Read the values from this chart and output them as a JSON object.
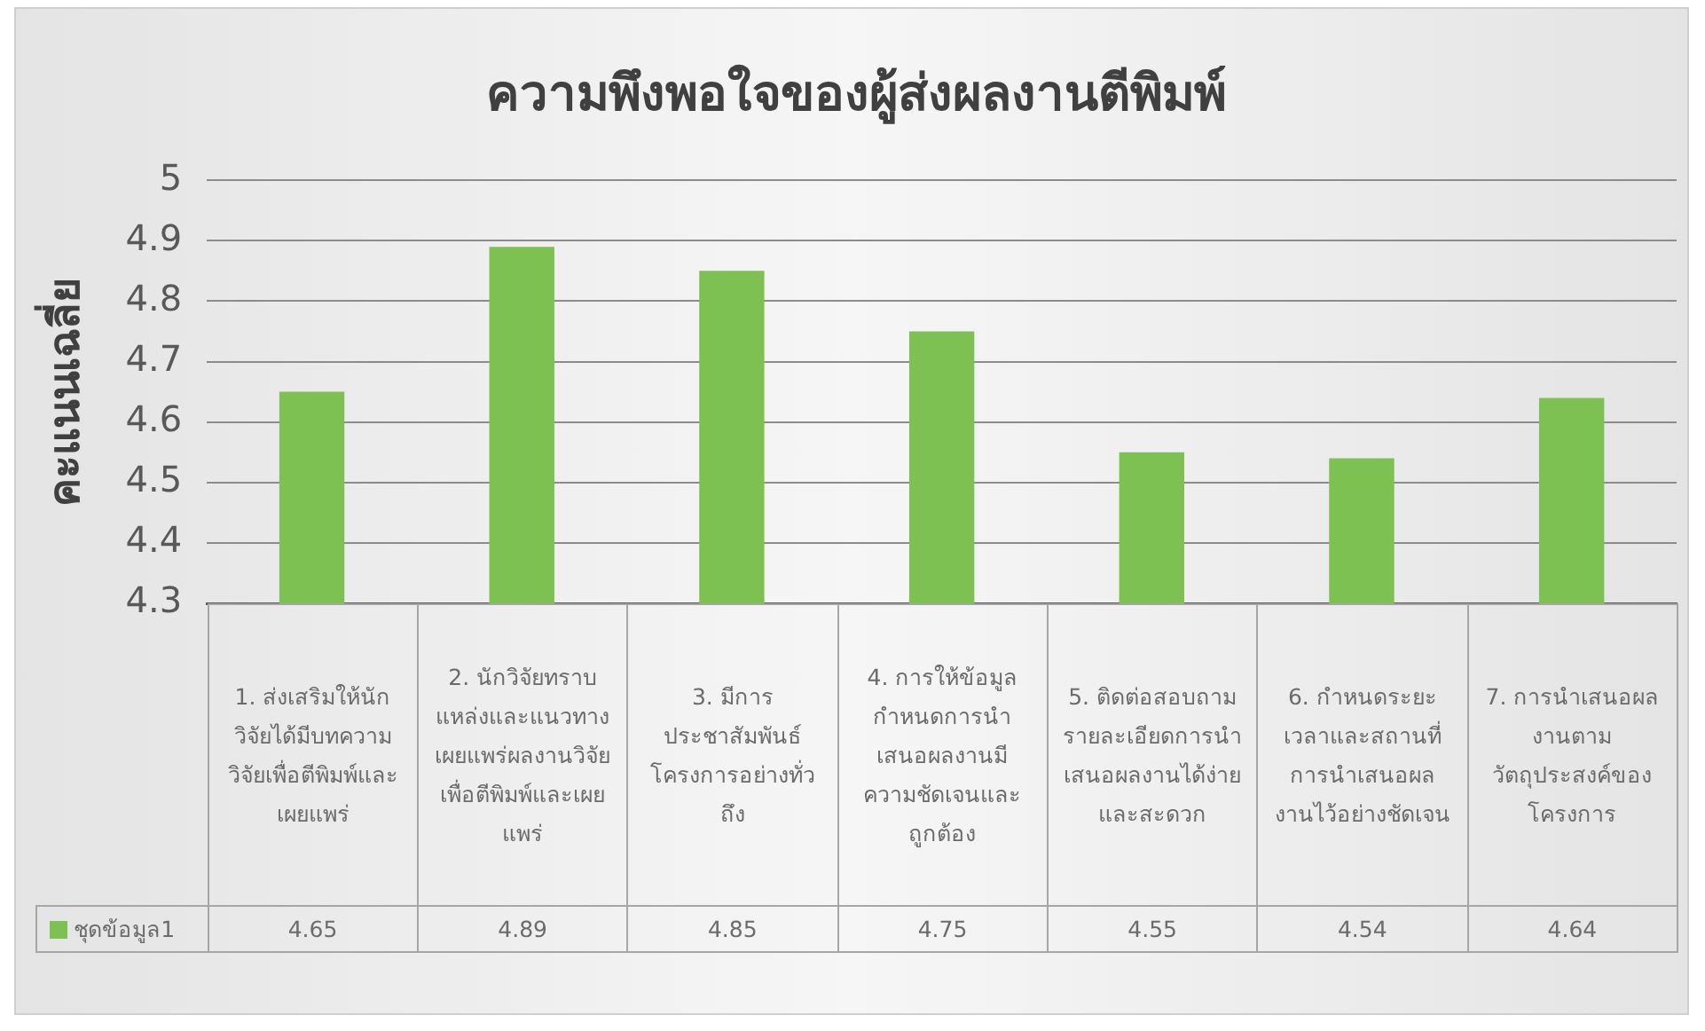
{
  "chart_data": {
    "type": "bar",
    "title": "ความพึงพอใจของผู้ส่งผลงานตีพิมพ์",
    "ylabel": "คะแนนเฉลี่ย",
    "categories": [
      "1. ส่งเสริมให้นักวิจัยได้มีบทความวิจัยเพื่อตีพิมพ์และเผยแพร่",
      "2. นักวิจัยทราบแหล่งและแนวทางเผยแพร่ผลงานวิจัยเพื่อตีพิมพ์และเผยแพร่",
      "3. มีการประชาสัมพันธ์โครงการอย่างทั่วถึง",
      "4. การให้ข้อมูลกำหนดการนำเสนอผลงานมีความชัดเจนและถูกต้อง",
      "5. ติดต่อสอบถามรายละเอียดการนำเสนอผลงานได้ง่ายและสะดวก",
      "6. กำหนดระยะเวลาและสถานที่การนำเสนอผลงานไว้อย่างชัดเจน",
      "7.  การนำเสนอผลงานตามวัตถุประสงค์ของโครงการ"
    ],
    "series": [
      {
        "name": "ชุดข้อมูล1",
        "color": "#7cc151",
        "values": [
          4.65,
          4.89,
          4.85,
          4.75,
          4.55,
          4.54,
          4.64
        ]
      }
    ],
    "ylim": [
      4.3,
      5
    ],
    "yticks": [
      4.3,
      4.4,
      4.5,
      4.6,
      4.7,
      4.8,
      4.9,
      5
    ],
    "grid": "y",
    "legend": "bottom",
    "data_labels": true
  }
}
